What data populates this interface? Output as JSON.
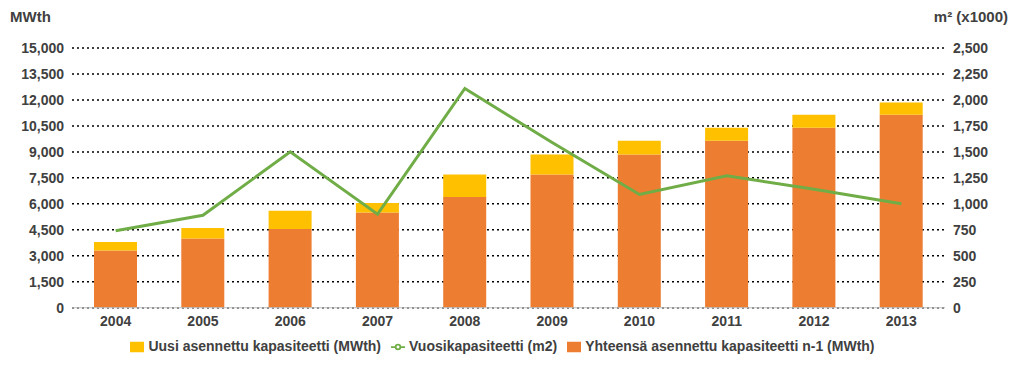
{
  "chart_data": {
    "type": "bar",
    "stacked": true,
    "grid": true,
    "legend": "bottom",
    "y_label": "MWth",
    "y2_label": "m² (x1000)",
    "categories": [
      "2004",
      "2005",
      "2006",
      "2007",
      "2008",
      "2009",
      "2010",
      "2011",
      "2012",
      "2013"
    ],
    "ylim": [
      0,
      15000
    ],
    "yticks": [
      0,
      {
        "value": 1500,
        "label": "1,500"
      },
      {
        "value": 3000,
        "label": "3,000"
      },
      {
        "value": 4500,
        "label": "4,500"
      },
      {
        "value": 6000,
        "label": "6,000"
      },
      {
        "value": 7500,
        "label": "7,500"
      },
      {
        "value": 9000,
        "label": "9,000"
      },
      {
        "value": 10500,
        "label": "10,500"
      },
      {
        "value": 12000,
        "label": "12,000"
      },
      {
        "value": 13500,
        "label": "13,500"
      },
      {
        "value": 15000,
        "label": "15,000"
      }
    ],
    "y2lim": [
      0,
      2500
    ],
    "y2ticks": [
      0,
      250,
      500,
      750,
      {
        "value": 1000,
        "label": "1,000"
      },
      {
        "value": 1250,
        "label": "1,250"
      },
      {
        "value": 1500,
        "label": "1,500"
      },
      {
        "value": 1750,
        "label": "1,750"
      },
      {
        "value": 2000,
        "label": "2,000"
      },
      {
        "value": 2250,
        "label": "2,250"
      },
      {
        "value": 2500,
        "label": "2,500"
      }
    ],
    "series": [
      {
        "name": "Yhteensä asennettu kapasiteetti n-1 (MWth)",
        "type": "bar",
        "color": "#ed7d31",
        "values": [
          3300,
          4000,
          4550,
          5500,
          6400,
          7700,
          8850,
          9650,
          10400,
          11150
        ]
      },
      {
        "name": "Uusi asennettu kapasiteetti (MWth)",
        "type": "bar",
        "color": "#ffc000",
        "values": [
          500,
          600,
          1050,
          550,
          1300,
          1150,
          800,
          750,
          750,
          700
        ]
      },
      {
        "name": "Vuosikapasiteetti (m2)",
        "type": "line",
        "axis": "y2",
        "color": "#70ad47",
        "values": [
          740,
          890,
          1500,
          900,
          2110,
          1590,
          1090,
          1270,
          1140,
          1000
        ]
      }
    ]
  }
}
